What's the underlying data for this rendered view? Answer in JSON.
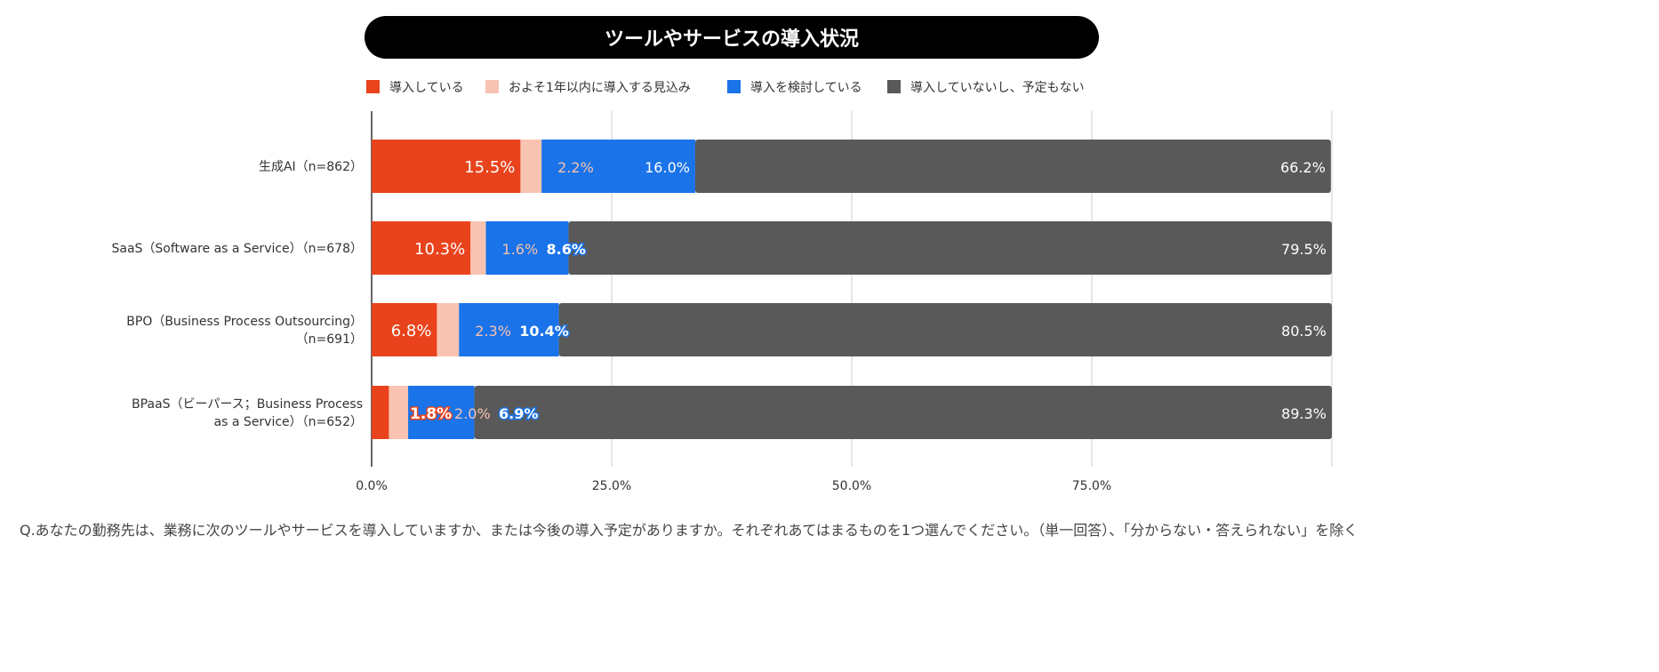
{
  "chart_data": {
    "type": "bar",
    "orientation": "horizontal",
    "stacked": true,
    "title": "ツールやサービスの導入状況",
    "categories": [
      [
        "生成AI（n=862）"
      ],
      [
        "SaaS（Software as a Service）（n=678）"
      ],
      [
        "BPO（Business Process Outsourcing）",
        "（n=691）"
      ],
      [
        "BPaaS（ビーパース；Business Process",
        "as a Service）（n=652）"
      ]
    ],
    "series": [
      {
        "name": "導入している",
        "color": "#E8431C",
        "values": [
          15.5,
          10.3,
          6.8,
          1.8
        ]
      },
      {
        "name": "およそ1年以内に導入する見込み",
        "color": "#F8C3B0",
        "values": [
          2.2,
          1.6,
          2.3,
          2.0
        ]
      },
      {
        "name": "導入を検討している",
        "color": "#1A73E8",
        "values": [
          16.0,
          8.6,
          10.4,
          6.9
        ]
      },
      {
        "name": "導入していないし、予定もない",
        "color": "#595959",
        "values": [
          66.2,
          79.5,
          80.5,
          89.3
        ]
      }
    ],
    "xlim": [
      0,
      100
    ],
    "xticks": [
      "0.0%",
      "25.0%",
      "50.0%",
      "75.0%"
    ],
    "grid": true,
    "legend": "top"
  },
  "note": "Q.あなたの勤務先は、業務に次のツールやサービスを導入していますか、または今後の導入予定がありますか。それぞれあてはまるものを1つ選んでください。（単一回答）、「分からない・答えられない」を除く"
}
